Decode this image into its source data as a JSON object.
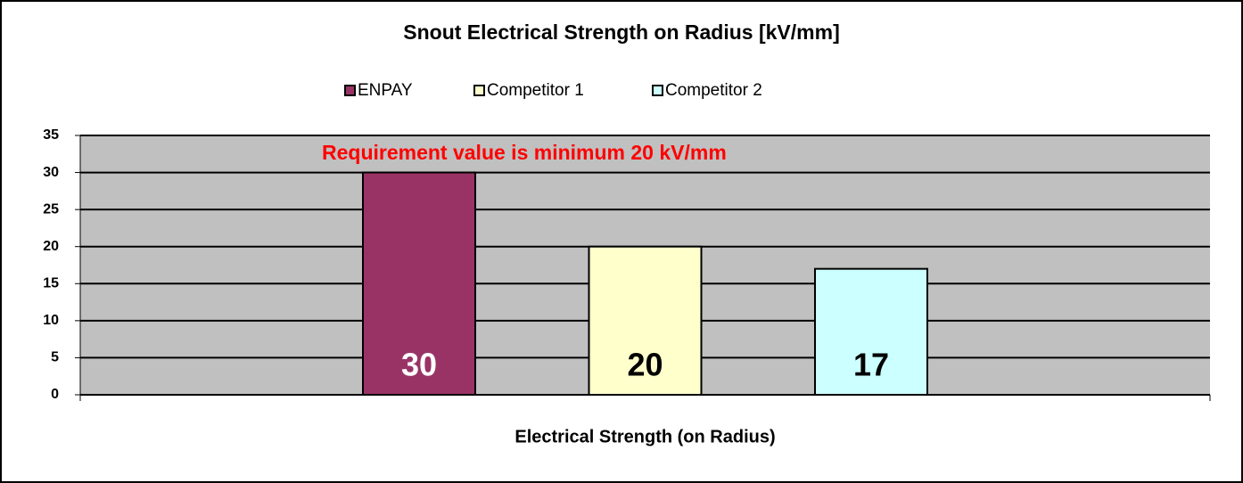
{
  "chart_data": {
    "type": "bar",
    "title": "Snout Electrical Strength on Radius [kV/mm]",
    "annotation": "Requirement value is minimum 20 kV/mm",
    "categories": [
      "Electrical Strength (on Radius)"
    ],
    "series": [
      {
        "name": "ENPAY",
        "color": "#993366",
        "label_color": "#ffffff",
        "values": [
          30
        ]
      },
      {
        "name": "Competitor 1",
        "color": "#ffffcc",
        "label_color": "#000000",
        "values": [
          20
        ]
      },
      {
        "name": "Competitor 2",
        "color": "#ccffff",
        "label_color": "#000000",
        "values": [
          17
        ]
      }
    ],
    "ylim": [
      0,
      35
    ],
    "yticks": [
      0,
      5,
      10,
      15,
      20,
      25,
      30,
      35
    ],
    "grid": true,
    "legend": "top",
    "plot_background": "#c0c0c0",
    "annotation_color": "#ff0000"
  }
}
